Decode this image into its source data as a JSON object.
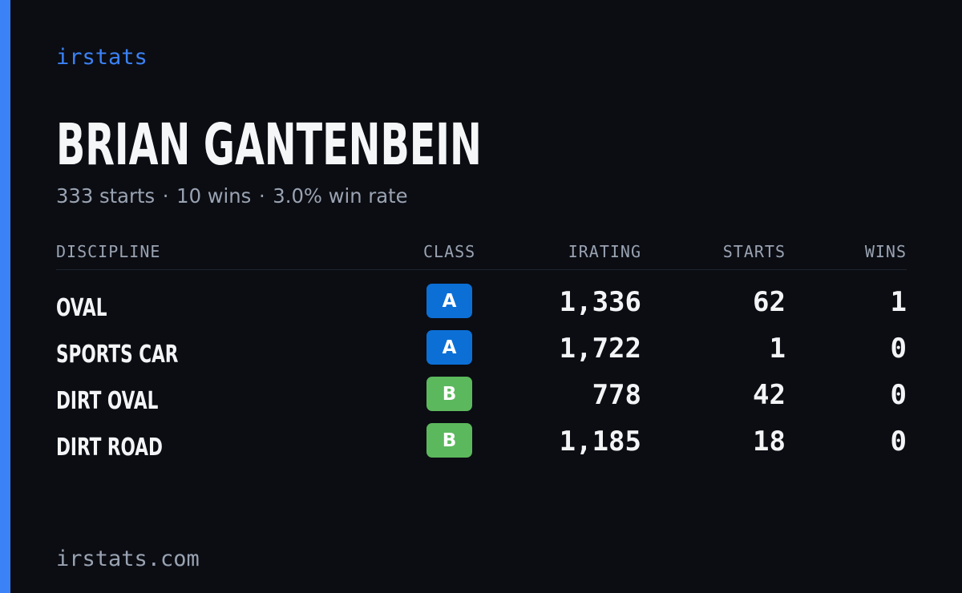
{
  "brand": "irstats",
  "driver": {
    "name": "BRIAN GANTENBEIN",
    "starts_text": "333 starts",
    "wins_text": "10 wins",
    "win_rate_text": "3.0% win rate",
    "separator": "·"
  },
  "table": {
    "headers": {
      "discipline": "DISCIPLINE",
      "class": "CLASS",
      "irating": "IRATING",
      "starts": "STARTS",
      "wins": "WINS"
    },
    "rows": [
      {
        "discipline": "OVAL",
        "class": "A",
        "irating": "1,336",
        "starts": "62",
        "wins": "1"
      },
      {
        "discipline": "SPORTS CAR",
        "class": "A",
        "irating": "1,722",
        "starts": "1",
        "wins": "0"
      },
      {
        "discipline": "DIRT OVAL",
        "class": "B",
        "irating": "778",
        "starts": "42",
        "wins": "0"
      },
      {
        "discipline": "DIRT ROAD",
        "class": "B",
        "irating": "1,185",
        "starts": "18",
        "wins": "0"
      }
    ]
  },
  "class_colors": {
    "A": "#0c6fd6",
    "B": "#5cb85c"
  },
  "accent_color": "#3b82f6",
  "footer": "irstats.com"
}
